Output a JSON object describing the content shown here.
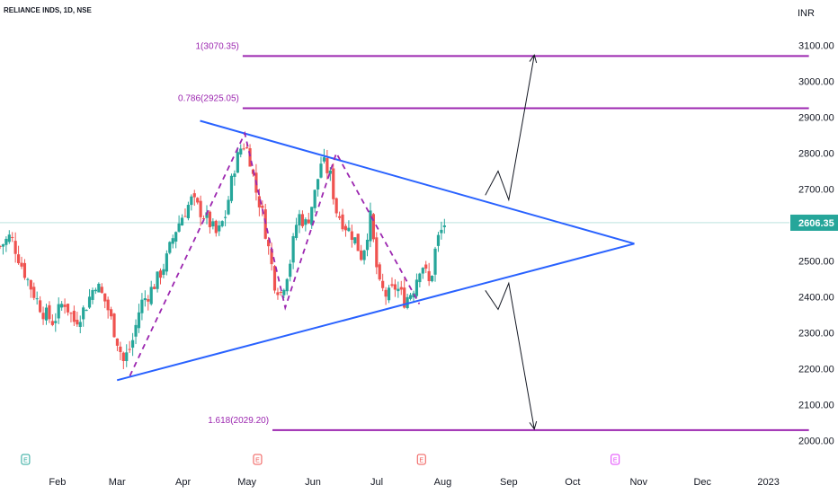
{
  "header": {
    "symbol": "RELIANCE INDS, 1D, NSE",
    "currency": "INR"
  },
  "current_price": {
    "label": "2606.35",
    "value": 2606.35,
    "color": "#26a69a"
  },
  "colors": {
    "bull": "#26a69a",
    "bear": "#ef5350",
    "fib": "#9c27b0",
    "triangle": "#2962ff",
    "arrow": "#131722"
  },
  "chart_data": {
    "type": "candlestick",
    "y_axis": {
      "range": [
        1950,
        3150
      ],
      "ticks": [
        2000,
        2100,
        2200,
        2300,
        2400,
        2500,
        2600,
        2700,
        2800,
        2900,
        3000,
        3100
      ],
      "tick_labels": [
        "2000.00",
        "2100.00",
        "2200.00",
        "2300.00",
        "2400.00",
        "2500.00",
        "2600.00",
        "2700.00",
        "2800.00",
        "2900.00",
        "3000.00",
        "3100.00"
      ]
    },
    "x_axis": {
      "range": [
        "2022-01-05",
        "2023-01-21"
      ],
      "ticks": [
        {
          "date": "2022-02-01",
          "label": "Feb"
        },
        {
          "date": "2022-03-01",
          "label": "Mar"
        },
        {
          "date": "2022-04-01",
          "label": "Apr"
        },
        {
          "date": "2022-05-01",
          "label": "May"
        },
        {
          "date": "2022-06-01",
          "label": "Jun"
        },
        {
          "date": "2022-07-01",
          "label": "Jul"
        },
        {
          "date": "2022-08-01",
          "label": "Aug"
        },
        {
          "date": "2022-09-01",
          "label": "Sep"
        },
        {
          "date": "2022-10-01",
          "label": "Oct"
        },
        {
          "date": "2022-11-01",
          "label": "Nov"
        },
        {
          "date": "2022-12-01",
          "label": "Dec"
        },
        {
          "date": "2023-01-01",
          "label": "2023"
        }
      ]
    },
    "price_path": [
      {
        "x": "2022-01-05",
        "y": 2540
      },
      {
        "x": "2022-01-10",
        "y": 2570
      },
      {
        "x": "2022-01-15",
        "y": 2490
      },
      {
        "x": "2022-01-20",
        "y": 2420
      },
      {
        "x": "2022-01-25",
        "y": 2360
      },
      {
        "x": "2022-01-30",
        "y": 2330
      },
      {
        "x": "2022-02-04",
        "y": 2390
      },
      {
        "x": "2022-02-09",
        "y": 2330
      },
      {
        "x": "2022-02-14",
        "y": 2370
      },
      {
        "x": "2022-02-19",
        "y": 2440
      },
      {
        "x": "2022-02-24",
        "y": 2380
      },
      {
        "x": "2022-02-28",
        "y": 2300
      },
      {
        "x": "2022-03-04",
        "y": 2220
      },
      {
        "x": "2022-03-08",
        "y": 2270
      },
      {
        "x": "2022-03-12",
        "y": 2380
      },
      {
        "x": "2022-03-16",
        "y": 2410
      },
      {
        "x": "2022-03-20",
        "y": 2450
      },
      {
        "x": "2022-03-24",
        "y": 2500
      },
      {
        "x": "2022-03-28",
        "y": 2580
      },
      {
        "x": "2022-04-01",
        "y": 2630
      },
      {
        "x": "2022-04-05",
        "y": 2670
      },
      {
        "x": "2022-04-09",
        "y": 2640
      },
      {
        "x": "2022-04-13",
        "y": 2610
      },
      {
        "x": "2022-04-17",
        "y": 2570
      },
      {
        "x": "2022-04-21",
        "y": 2630
      },
      {
        "x": "2022-04-25",
        "y": 2760
      },
      {
        "x": "2022-04-29",
        "y": 2830
      },
      {
        "x": "2022-05-02",
        "y": 2800
      },
      {
        "x": "2022-05-05",
        "y": 2700
      },
      {
        "x": "2022-05-08",
        "y": 2640
      },
      {
        "x": "2022-05-11",
        "y": 2540
      },
      {
        "x": "2022-05-14",
        "y": 2440
      },
      {
        "x": "2022-05-17",
        "y": 2410
      },
      {
        "x": "2022-05-21",
        "y": 2490
      },
      {
        "x": "2022-05-25",
        "y": 2630
      },
      {
        "x": "2022-05-29",
        "y": 2600
      },
      {
        "x": "2022-06-02",
        "y": 2690
      },
      {
        "x": "2022-06-05",
        "y": 2780
      },
      {
        "x": "2022-06-09",
        "y": 2740
      },
      {
        "x": "2022-06-12",
        "y": 2640
      },
      {
        "x": "2022-06-16",
        "y": 2600
      },
      {
        "x": "2022-06-20",
        "y": 2570
      },
      {
        "x": "2022-06-24",
        "y": 2510
      },
      {
        "x": "2022-06-28",
        "y": 2620
      },
      {
        "x": "2022-07-02",
        "y": 2430
      },
      {
        "x": "2022-07-06",
        "y": 2400
      },
      {
        "x": "2022-07-10",
        "y": 2430
      },
      {
        "x": "2022-07-14",
        "y": 2390
      },
      {
        "x": "2022-07-18",
        "y": 2420
      },
      {
        "x": "2022-07-22",
        "y": 2500
      },
      {
        "x": "2022-07-26",
        "y": 2430
      },
      {
        "x": "2022-07-29",
        "y": 2550
      },
      {
        "x": "2022-08-02",
        "y": 2606.35
      }
    ],
    "swing_path": [
      {
        "x": "2022-03-07",
        "y": 2180
      },
      {
        "x": "2022-04-30",
        "y": 2855
      },
      {
        "x": "2022-05-19",
        "y": 2370
      },
      {
        "x": "2022-06-12",
        "y": 2800
      },
      {
        "x": "2022-07-21",
        "y": 2380
      }
    ],
    "fib_levels": [
      {
        "label": "1(3070.35)",
        "value": 3070.35,
        "x_start": "2022-04-29",
        "x_end": "2023-01-20"
      },
      {
        "label": "0.786(2925.05)",
        "value": 2925.05,
        "x_start": "2022-04-29",
        "x_end": "2023-01-20"
      },
      {
        "label": "1.618(2029.20)",
        "value": 2029.2,
        "x_start": "2022-05-13",
        "x_end": "2023-01-20"
      }
    ],
    "triangle_lines": [
      {
        "x1": "2022-04-09",
        "y1": 2890,
        "x2": "2022-10-30",
        "y2": 2548
      },
      {
        "x1": "2022-03-01",
        "y1": 2168,
        "x2": "2022-10-30",
        "y2": 2548
      }
    ],
    "projection_arrows": [
      [
        {
          "x": "2022-08-21",
          "y": 2683
        },
        {
          "x": "2022-08-27",
          "y": 2750
        },
        {
          "x": "2022-09-01",
          "y": 2670
        },
        {
          "x": "2022-09-13",
          "y": 3073
        }
      ],
      [
        {
          "x": "2022-08-21",
          "y": 2418
        },
        {
          "x": "2022-08-27",
          "y": 2365
        },
        {
          "x": "2022-09-01",
          "y": 2438
        },
        {
          "x": "2022-09-13",
          "y": 2032
        }
      ]
    ],
    "events": [
      {
        "date": "2022-01-17",
        "kind": "earnings",
        "label": "E",
        "color": "#26a69a"
      },
      {
        "date": "2022-05-06",
        "kind": "earnings",
        "label": "E",
        "color": "#ef5350"
      },
      {
        "date": "2022-07-22",
        "kind": "earnings",
        "label": "E",
        "color": "#ef5350"
      },
      {
        "date": "2022-10-21",
        "kind": "earnings",
        "label": "E",
        "color": "#e040fb"
      }
    ]
  }
}
